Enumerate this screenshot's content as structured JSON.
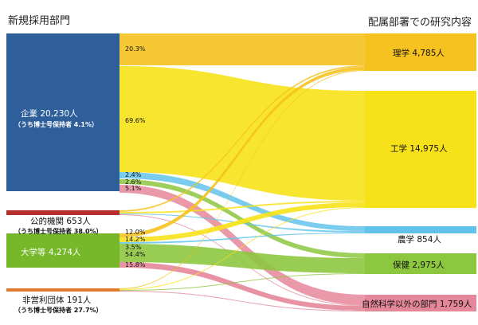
{
  "headers": {
    "left": "新規採用部門",
    "right": "配属部署での研究内容"
  },
  "sources": [
    {
      "label": "企業 20,230人",
      "sub": "（うち博士号保持者 4.1%）",
      "color": "#2f5f9a"
    },
    {
      "label": "公的機関 653人",
      "sub": "（うち博士号保持者 38.0%）",
      "color": "#b5302f"
    },
    {
      "label": "大学等 4,274人",
      "sub": "",
      "color": "#76b82a"
    },
    {
      "label": "非営利団体 191人",
      "sub": "（うち博士号保持者 27.7%）",
      "color": "#e07b2e"
    }
  ],
  "targets": [
    {
      "label": "理学 4,785人",
      "color": "#f5c21f"
    },
    {
      "label": "工学 14,975人",
      "color": "#f7e21a"
    },
    {
      "label": "農学 854人",
      "color": "#62c3ea"
    },
    {
      "label": "保健 2,975人",
      "color": "#8dc63f"
    },
    {
      "label": "自然科学以外の部門 1,759人",
      "color": "#e5879a"
    }
  ],
  "percents": {
    "company": [
      "20.3%",
      "69.6%",
      "2.4%",
      "2.6%",
      "5.1%"
    ],
    "university": [
      "12.0%",
      "14.2%",
      "3.5%",
      "54.4%",
      "15.8%"
    ]
  },
  "colors": {
    "science": "#f5c21f",
    "engineering": "#f7e21a",
    "agriculture": "#62c3ea",
    "health": "#8dc63f",
    "other": "#e5879a"
  }
}
